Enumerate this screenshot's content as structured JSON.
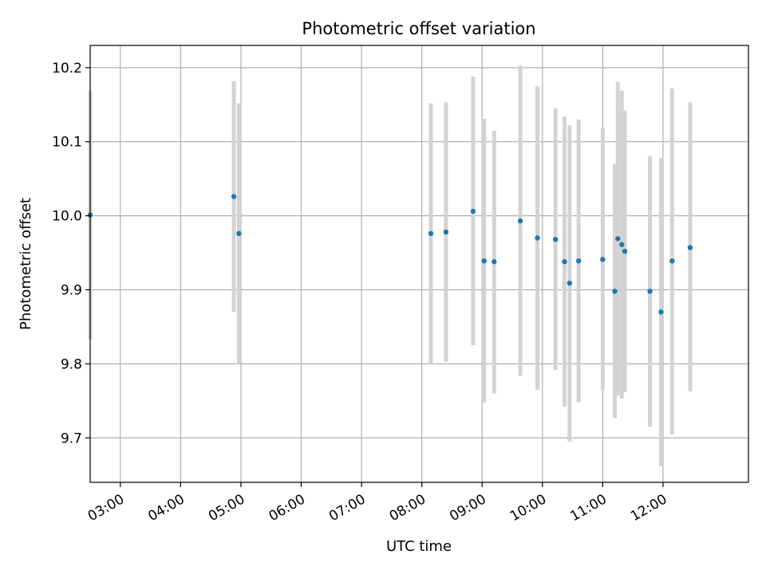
{
  "chart_data": {
    "type": "scatter",
    "title": "Photometric offset variation",
    "xlabel": "UTC time",
    "ylabel": "Photometric offset",
    "xlim": [
      "02:30",
      "13:25"
    ],
    "ylim": [
      9.64,
      10.23
    ],
    "x_ticks": [
      "03:00",
      "04:00",
      "05:00",
      "06:00",
      "07:00",
      "08:00",
      "09:00",
      "10:00",
      "11:00",
      "12:00"
    ],
    "y_ticks": [
      9.7,
      9.8,
      9.9,
      10.0,
      10.1,
      10.2
    ],
    "grid": true,
    "colors": {
      "point": "#1f77b4",
      "errorbar": "#d3d3d3",
      "grid": "#b0b0b0"
    },
    "points": [
      {
        "time": "02:30",
        "y": 10.001,
        "lo": 9.833,
        "hi": 10.169
      },
      {
        "time": "04:53",
        "y": 10.026,
        "lo": 9.87,
        "hi": 10.182
      },
      {
        "time": "04:58",
        "y": 9.976,
        "lo": 9.8,
        "hi": 10.152
      },
      {
        "time": "08:09",
        "y": 9.976,
        "lo": 9.8,
        "hi": 10.152
      },
      {
        "time": "08:24",
        "y": 9.978,
        "lo": 9.803,
        "hi": 10.153
      },
      {
        "time": "08:51",
        "y": 10.006,
        "lo": 9.825,
        "hi": 10.188
      },
      {
        "time": "09:02",
        "y": 9.939,
        "lo": 9.748,
        "hi": 10.131
      },
      {
        "time": "09:12",
        "y": 9.938,
        "lo": 9.76,
        "hi": 10.115
      },
      {
        "time": "09:38",
        "y": 9.993,
        "lo": 9.784,
        "hi": 10.203
      },
      {
        "time": "09:55",
        "y": 9.97,
        "lo": 9.765,
        "hi": 10.175
      },
      {
        "time": "10:13",
        "y": 9.968,
        "lo": 9.792,
        "hi": 10.145
      },
      {
        "time": "10:22",
        "y": 9.938,
        "lo": 9.742,
        "hi": 10.134
      },
      {
        "time": "10:27",
        "y": 9.909,
        "lo": 9.695,
        "hi": 10.122
      },
      {
        "time": "10:36",
        "y": 9.939,
        "lo": 9.748,
        "hi": 10.13
      },
      {
        "time": "11:00",
        "y": 9.941,
        "lo": 9.765,
        "hi": 10.118
      },
      {
        "time": "11:12",
        "y": 9.898,
        "lo": 9.727,
        "hi": 10.07
      },
      {
        "time": "11:15",
        "y": 9.969,
        "lo": 9.757,
        "hi": 10.181
      },
      {
        "time": "11:19",
        "y": 9.961,
        "lo": 9.753,
        "hi": 10.169
      },
      {
        "time": "11:22",
        "y": 9.952,
        "lo": 9.762,
        "hi": 10.142
      },
      {
        "time": "11:47",
        "y": 9.898,
        "lo": 9.715,
        "hi": 10.081
      },
      {
        "time": "11:58",
        "y": 9.87,
        "lo": 9.662,
        "hi": 10.078
      },
      {
        "time": "12:09",
        "y": 9.939,
        "lo": 9.705,
        "hi": 10.172
      },
      {
        "time": "12:27",
        "y": 9.957,
        "lo": 9.763,
        "hi": 10.153
      }
    ]
  }
}
